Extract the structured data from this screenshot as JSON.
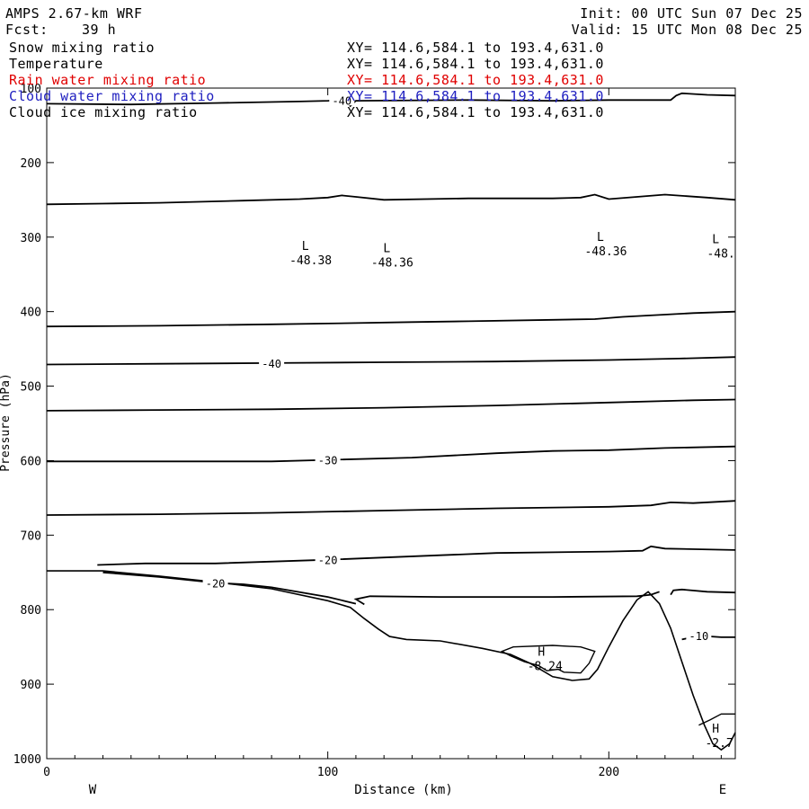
{
  "header": {
    "model": "AMPS 2.67-km WRF",
    "init": "Init: 00 UTC Sun 07 Dec 25",
    "fcst_label": "Fcst:",
    "fcst_value": "39 h",
    "valid": "Valid: 15 UTC Mon 08 Dec 25"
  },
  "legend": [
    {
      "name": "Snow mixing ratio",
      "xy": "XY= 114.6,584.1 to 193.4,631.0",
      "color": "#000000"
    },
    {
      "name": "Temperature",
      "xy": "XY= 114.6,584.1 to 193.4,631.0",
      "color": "#000000"
    },
    {
      "name": "Rain water mixing ratio",
      "xy": "XY= 114.6,584.1 to 193.4,631.0",
      "color": "#e00000"
    },
    {
      "name": "Cloud water mixing ratio",
      "xy": "XY= 114.6,584.1 to 193.4,631.0",
      "color": "#2020c0"
    },
    {
      "name": "Cloud ice mixing ratio",
      "xy": "XY= 114.6,584.1 to 193.4,631.0",
      "color": "#000000"
    }
  ],
  "chart_data": {
    "type": "line",
    "xlabel": "Distance (km)",
    "ylabel": "Pressure (hPa)",
    "xlim": [
      0,
      245
    ],
    "ylim": [
      1000,
      100
    ],
    "x_ticks": [
      0,
      100,
      200
    ],
    "y_ticks": [
      100,
      200,
      300,
      400,
      500,
      600,
      700,
      800,
      900,
      1000
    ],
    "x_end_labels": {
      "left": "W",
      "right": "E"
    },
    "terrain": [
      [
        0,
        748
      ],
      [
        20,
        748
      ],
      [
        40,
        755
      ],
      [
        60,
        763
      ],
      [
        80,
        772
      ],
      [
        100,
        788
      ],
      [
        108,
        797
      ],
      [
        113,
        812
      ],
      [
        118,
        826
      ],
      [
        122,
        836
      ],
      [
        128,
        840
      ],
      [
        140,
        842
      ],
      [
        155,
        852
      ],
      [
        165,
        860
      ],
      [
        172,
        872
      ],
      [
        180,
        890
      ],
      [
        187,
        895
      ],
      [
        193,
        893
      ],
      [
        196,
        880
      ],
      [
        200,
        850
      ],
      [
        205,
        815
      ],
      [
        210,
        787
      ],
      [
        214,
        776
      ],
      [
        218,
        792
      ],
      [
        222,
        825
      ],
      [
        226,
        870
      ],
      [
        230,
        915
      ],
      [
        234,
        955
      ],
      [
        237,
        980
      ],
      [
        240,
        988
      ],
      [
        243,
        980
      ],
      [
        245,
        965
      ]
    ],
    "isotherms": [
      {
        "label": "-40",
        "points": [
          [
            0,
            121
          ],
          [
            30,
            122
          ],
          [
            60,
            120
          ],
          [
            90,
            118
          ],
          [
            100,
            117
          ],
          [
            105,
            116
          ],
          [
            107,
            117
          ],
          [
            108,
            124
          ],
          [
            110,
            117
          ],
          [
            150,
            116
          ],
          [
            180,
            117
          ],
          [
            200,
            116
          ],
          [
            222,
            116
          ],
          [
            224,
            110
          ],
          [
            226,
            107
          ],
          [
            235,
            109
          ],
          [
            245,
            110
          ]
        ]
      },
      {
        "label": null,
        "points": [
          [
            0,
            256
          ],
          [
            20,
            255
          ],
          [
            40,
            254
          ],
          [
            70,
            251
          ],
          [
            90,
            249
          ],
          [
            100,
            247
          ],
          [
            105,
            244
          ],
          [
            110,
            246
          ],
          [
            120,
            250
          ],
          [
            150,
            248
          ],
          [
            180,
            248
          ],
          [
            190,
            247
          ],
          [
            195,
            243
          ],
          [
            200,
            249
          ],
          [
            210,
            246
          ],
          [
            220,
            243
          ],
          [
            235,
            247
          ],
          [
            245,
            250
          ]
        ]
      },
      {
        "label": null,
        "points": [
          [
            0,
            420
          ],
          [
            40,
            419
          ],
          [
            80,
            417
          ],
          [
            100,
            416
          ],
          [
            130,
            414
          ],
          [
            150,
            413
          ],
          [
            180,
            411
          ],
          [
            195,
            410
          ],
          [
            205,
            407
          ],
          [
            230,
            402
          ],
          [
            245,
            400
          ]
        ]
      },
      {
        "label": "-40",
        "points": [
          [
            0,
            471
          ],
          [
            40,
            470
          ],
          [
            80,
            469
          ],
          [
            120,
            468
          ],
          [
            160,
            467
          ],
          [
            200,
            465
          ],
          [
            225,
            463
          ],
          [
            245,
            461
          ]
        ]
      },
      {
        "label": null,
        "points": [
          [
            0,
            533
          ],
          [
            40,
            532
          ],
          [
            80,
            531
          ],
          [
            120,
            529
          ],
          [
            160,
            526
          ],
          [
            200,
            522
          ],
          [
            230,
            519
          ],
          [
            245,
            518
          ]
        ]
      },
      {
        "label": "-30",
        "points": [
          [
            0,
            601
          ],
          [
            40,
            601
          ],
          [
            80,
            601
          ],
          [
            100,
            599
          ],
          [
            130,
            596
          ],
          [
            160,
            590
          ],
          [
            180,
            587
          ],
          [
            200,
            586
          ],
          [
            220,
            583
          ],
          [
            245,
            581
          ]
        ]
      },
      {
        "label": null,
        "points": [
          [
            0,
            673
          ],
          [
            40,
            672
          ],
          [
            80,
            670
          ],
          [
            120,
            667
          ],
          [
            160,
            664
          ],
          [
            200,
            662
          ],
          [
            215,
            660
          ],
          [
            222,
            656
          ],
          [
            230,
            657
          ],
          [
            245,
            654
          ]
        ]
      },
      {
        "label": "-20",
        "points": [
          [
            18,
            740
          ],
          [
            35,
            738
          ],
          [
            60,
            738
          ],
          [
            100,
            733
          ],
          [
            140,
            727
          ],
          [
            160,
            724
          ],
          [
            200,
            722
          ],
          [
            212,
            721
          ],
          [
            215,
            715
          ],
          [
            220,
            718
          ],
          [
            245,
            720
          ]
        ]
      },
      {
        "label": "-20",
        "points": [
          [
            20,
            750
          ],
          [
            40,
            756
          ],
          [
            60,
            764
          ],
          [
            70,
            766
          ],
          [
            80,
            770
          ],
          [
            100,
            783
          ],
          [
            110,
            792
          ]
        ]
      },
      {
        "label": null,
        "points": [
          [
            113,
            793
          ],
          [
            110,
            786
          ],
          [
            115,
            782
          ],
          [
            140,
            783
          ],
          [
            180,
            783
          ],
          [
            210,
            782
          ],
          [
            215,
            780
          ],
          [
            218,
            776
          ]
        ]
      },
      {
        "label": null,
        "points": [
          [
            222,
            780
          ],
          [
            223,
            774
          ],
          [
            226,
            773
          ],
          [
            235,
            776
          ],
          [
            245,
            777
          ]
        ]
      },
      {
        "label": "-10",
        "points": [
          [
            226,
            840
          ],
          [
            232,
            835
          ],
          [
            240,
            837
          ],
          [
            245,
            837
          ]
        ]
      }
    ],
    "contour_minor": [
      {
        "label": "-8.24",
        "points": [
          [
            165,
            862
          ],
          [
            162,
            856
          ],
          [
            166,
            850
          ],
          [
            180,
            848
          ],
          [
            190,
            850
          ],
          [
            195,
            856
          ],
          [
            193,
            872
          ],
          [
            190,
            885
          ],
          [
            184,
            884
          ],
          [
            182,
            880
          ],
          [
            178,
            882
          ],
          [
            175,
            875
          ],
          [
            170,
            870
          ],
          [
            165,
            862
          ]
        ]
      },
      {
        "label": "-2.7",
        "points": [
          [
            232,
            955
          ],
          [
            236,
            948
          ],
          [
            240,
            940
          ],
          [
            245,
            940
          ]
        ]
      }
    ],
    "highs": [
      {
        "symbol": "H",
        "x": 176,
        "p": 862,
        "value": "-8.24"
      },
      {
        "symbol": "H",
        "x": 238,
        "p": 965,
        "value": "-2.7"
      }
    ],
    "lows": [
      {
        "symbol": "L",
        "x": 92,
        "p": 327,
        "value": "-48.38"
      },
      {
        "symbol": "L",
        "x": 121,
        "p": 330,
        "value": "-48.36"
      },
      {
        "symbol": "L",
        "x": 197,
        "p": 315,
        "value": "-48.36"
      },
      {
        "symbol": "L",
        "x": 238,
        "p": 318,
        "value": "-48."
      }
    ]
  }
}
